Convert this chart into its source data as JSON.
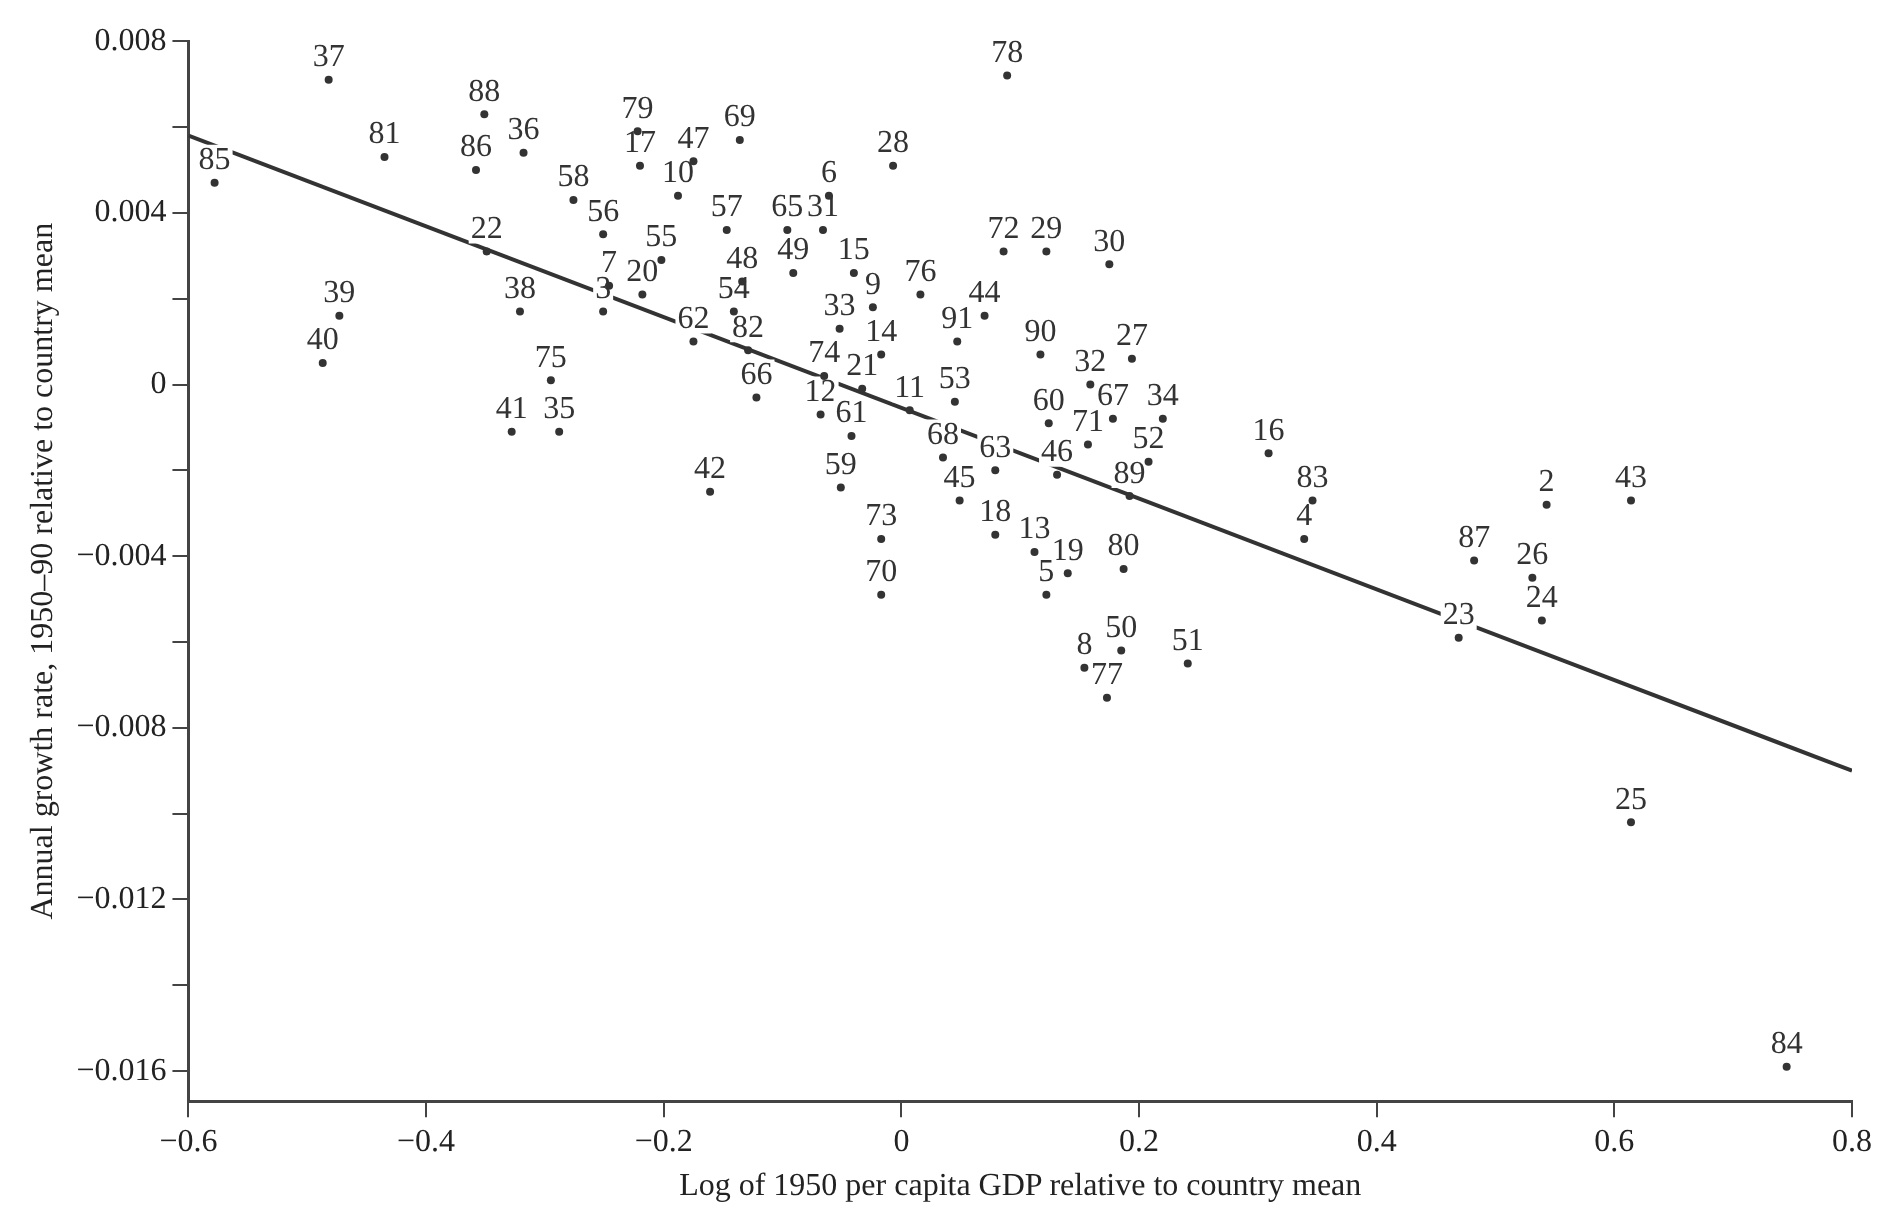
{
  "chart_data": {
    "type": "scatter",
    "xlabel": "Log of 1950 per capita GDP relative to country mean",
    "ylabel": "Annual growth rate, 1950–90 relative to country mean",
    "xlim": [
      -0.6,
      0.8
    ],
    "ylim": [
      -0.0167,
      0.008
    ],
    "xticks": [
      {
        "value": -0.6,
        "label": "−0.6"
      },
      {
        "value": -0.4,
        "label": "−0.4"
      },
      {
        "value": -0.2,
        "label": "−0.2"
      },
      0,
      0.2,
      0.4,
      0.6,
      0.8
    ],
    "yticks": [
      {
        "value": -0.016,
        "label": "−0.016"
      },
      {
        "value": -0.014,
        "label": null
      },
      {
        "value": -0.012,
        "label": "−0.012"
      },
      {
        "value": -0.01,
        "label": null
      },
      {
        "value": -0.008,
        "label": "−0.008"
      },
      {
        "value": -0.006,
        "label": null
      },
      {
        "value": -0.004,
        "label": "−0.004"
      },
      {
        "value": -0.002,
        "label": null
      },
      0,
      {
        "value": 0.002,
        "label": null
      },
      0.004,
      {
        "value": 0.006,
        "label": null
      },
      0.008
    ],
    "grid": false,
    "legend": false,
    "series": [
      {
        "type": "scatter",
        "color": "#333333",
        "marker": "circle",
        "x": [
          -0.482,
          -0.351,
          -0.435,
          -0.358,
          -0.318,
          -0.578,
          -0.222,
          -0.22,
          -0.175,
          -0.136,
          -0.276,
          -0.188,
          -0.349,
          -0.251,
          -0.202,
          -0.147,
          -0.096,
          -0.066,
          -0.061,
          -0.007,
          0.089,
          -0.473,
          -0.487,
          -0.321,
          -0.246,
          -0.218,
          -0.251,
          -0.134,
          -0.141,
          -0.091,
          -0.04,
          -0.175,
          -0.129,
          -0.052,
          -0.024,
          0.016,
          0.086,
          0.122,
          0.175,
          0.07,
          0.047,
          -0.017,
          0.117,
          0.194,
          0.159,
          -0.295,
          -0.065,
          -0.033,
          -0.122,
          0.007,
          0.045,
          0.124,
          0.178,
          0.22,
          0.157,
          -0.068,
          -0.042,
          -0.328,
          -0.288,
          0.309,
          0.208,
          0.035,
          0.079,
          0.131,
          0.192,
          0.049,
          -0.051,
          -0.161,
          0.346,
          0.339,
          0.543,
          0.614,
          0.079,
          -0.017,
          0.112,
          0.14,
          0.187,
          0.122,
          -0.017,
          0.482,
          0.531,
          0.539,
          0.469,
          0.185,
          0.154,
          0.241,
          0.173,
          0.614,
          0.745
        ],
        "values": [
          0.0071,
          0.0063,
          0.0053,
          0.005,
          0.0054,
          0.0047,
          0.0059,
          0.0051,
          0.0052,
          0.0057,
          0.0043,
          0.0044,
          0.0031,
          0.0035,
          0.0029,
          0.0036,
          0.0036,
          0.0036,
          0.0044,
          0.0051,
          0.0072,
          0.0016,
          0.0005,
          0.0017,
          0.0023,
          0.0021,
          0.0017,
          0.0024,
          0.0017,
          0.0026,
          0.0026,
          0.001,
          0.0008,
          0.0013,
          0.0018,
          0.0021,
          0.0031,
          0.0031,
          0.0028,
          0.0016,
          0.001,
          0.0007,
          0.0007,
          0.0006,
          0.0,
          0.0001,
          0.0002,
          -0.0001,
          -0.0003,
          -0.0006,
          -0.0004,
          -0.0009,
          -0.0008,
          -0.0008,
          -0.0014,
          -0.0007,
          -0.0012,
          -0.0011,
          -0.0011,
          -0.0016,
          -0.0018,
          -0.0017,
          -0.002,
          -0.0021,
          -0.0026,
          -0.0027,
          -0.0024,
          -0.0025,
          -0.0027,
          -0.0036,
          -0.0028,
          -0.0027,
          -0.0035,
          -0.0036,
          -0.0039,
          -0.0044,
          -0.0043,
          -0.0049,
          -0.0049,
          -0.0041,
          -0.0045,
          -0.0055,
          -0.0059,
          -0.0062,
          -0.0066,
          -0.0065,
          -0.0073,
          -0.0102,
          -0.0159
        ]
      },
      {
        "type": "line",
        "color": "#333333",
        "x": [
          -0.6,
          0.8
        ],
        "values": [
          0.0058,
          -0.009
        ],
        "line_style": "solid",
        "marker": "none"
      }
    ],
    "annotations": [
      {
        "text": "37",
        "x": -0.482,
        "y": 0.0071
      },
      {
        "text": "88",
        "x": -0.351,
        "y": 0.0063
      },
      {
        "text": "81",
        "x": -0.435,
        "y": 0.0053
      },
      {
        "text": "86",
        "x": -0.358,
        "y": 0.005
      },
      {
        "text": "36",
        "x": -0.318,
        "y": 0.0054
      },
      {
        "text": "85",
        "x": -0.578,
        "y": 0.0047
      },
      {
        "text": "79",
        "x": -0.222,
        "y": 0.0059
      },
      {
        "text": "17",
        "x": -0.22,
        "y": 0.0051
      },
      {
        "text": "47",
        "x": -0.175,
        "y": 0.0052
      },
      {
        "text": "69",
        "x": -0.136,
        "y": 0.0057
      },
      {
        "text": "58",
        "x": -0.276,
        "y": 0.0043
      },
      {
        "text": "10",
        "x": -0.188,
        "y": 0.0044
      },
      {
        "text": "22",
        "x": -0.349,
        "y": 0.0031
      },
      {
        "text": "56",
        "x": -0.251,
        "y": 0.0035
      },
      {
        "text": "55",
        "x": -0.202,
        "y": 0.0029
      },
      {
        "text": "57",
        "x": -0.147,
        "y": 0.0036
      },
      {
        "text": "65",
        "x": -0.096,
        "y": 0.0036
      },
      {
        "text": "31",
        "x": -0.066,
        "y": 0.0036
      },
      {
        "text": "6",
        "x": -0.061,
        "y": 0.0044
      },
      {
        "text": "28",
        "x": -0.007,
        "y": 0.0051
      },
      {
        "text": "78",
        "x": 0.089,
        "y": 0.0072
      },
      {
        "text": "39",
        "x": -0.473,
        "y": 0.0016
      },
      {
        "text": "40",
        "x": -0.487,
        "y": 0.0005
      },
      {
        "text": "38",
        "x": -0.321,
        "y": 0.0017
      },
      {
        "text": "7",
        "x": -0.246,
        "y": 0.0023
      },
      {
        "text": "20",
        "x": -0.218,
        "y": 0.0021
      },
      {
        "text": "3",
        "x": -0.251,
        "y": 0.0017
      },
      {
        "text": "48",
        "x": -0.134,
        "y": 0.0024
      },
      {
        "text": "54",
        "x": -0.141,
        "y": 0.0017
      },
      {
        "text": "49",
        "x": -0.091,
        "y": 0.0026
      },
      {
        "text": "15",
        "x": -0.04,
        "y": 0.0026
      },
      {
        "text": "62",
        "x": -0.175,
        "y": 0.001
      },
      {
        "text": "82",
        "x": -0.129,
        "y": 0.0008
      },
      {
        "text": "33",
        "x": -0.052,
        "y": 0.0013
      },
      {
        "text": "9",
        "x": -0.024,
        "y": 0.0018
      },
      {
        "text": "76",
        "x": 0.016,
        "y": 0.0021
      },
      {
        "text": "72",
        "x": 0.086,
        "y": 0.0031
      },
      {
        "text": "29",
        "x": 0.122,
        "y": 0.0031
      },
      {
        "text": "30",
        "x": 0.175,
        "y": 0.0028
      },
      {
        "text": "44",
        "x": 0.07,
        "y": 0.0016
      },
      {
        "text": "91",
        "x": 0.047,
        "y": 0.001
      },
      {
        "text": "14",
        "x": -0.017,
        "y": 0.0007
      },
      {
        "text": "90",
        "x": 0.117,
        "y": 0.0007
      },
      {
        "text": "27",
        "x": 0.194,
        "y": 0.0006
      },
      {
        "text": "32",
        "x": 0.159,
        "y": 0.0
      },
      {
        "text": "75",
        "x": -0.295,
        "y": 0.0001
      },
      {
        "text": "74",
        "x": -0.065,
        "y": 0.0002
      },
      {
        "text": "21",
        "x": -0.033,
        "y": -0.0001
      },
      {
        "text": "66",
        "x": -0.122,
        "y": -0.0003
      },
      {
        "text": "11",
        "x": 0.007,
        "y": -0.0006
      },
      {
        "text": "53",
        "x": 0.045,
        "y": -0.0004
      },
      {
        "text": "60",
        "x": 0.124,
        "y": -0.0009
      },
      {
        "text": "67",
        "x": 0.178,
        "y": -0.0008
      },
      {
        "text": "34",
        "x": 0.22,
        "y": -0.0008
      },
      {
        "text": "71",
        "x": 0.157,
        "y": -0.0014
      },
      {
        "text": "12",
        "x": -0.068,
        "y": -0.0007
      },
      {
        "text": "61",
        "x": -0.042,
        "y": -0.0012
      },
      {
        "text": "41",
        "x": -0.328,
        "y": -0.0011
      },
      {
        "text": "35",
        "x": -0.288,
        "y": -0.0011
      },
      {
        "text": "16",
        "x": 0.309,
        "y": -0.0016
      },
      {
        "text": "52",
        "x": 0.208,
        "y": -0.0018
      },
      {
        "text": "68",
        "x": 0.035,
        "y": -0.0017
      },
      {
        "text": "63",
        "x": 0.079,
        "y": -0.002
      },
      {
        "text": "46",
        "x": 0.131,
        "y": -0.0021
      },
      {
        "text": "89",
        "x": 0.192,
        "y": -0.0026
      },
      {
        "text": "45",
        "x": 0.049,
        "y": -0.0027
      },
      {
        "text": "59",
        "x": -0.051,
        "y": -0.0024
      },
      {
        "text": "42",
        "x": -0.161,
        "y": -0.0025
      },
      {
        "text": "83",
        "x": 0.346,
        "y": -0.0027
      },
      {
        "text": "4",
        "x": 0.339,
        "y": -0.0036
      },
      {
        "text": "2",
        "x": 0.543,
        "y": -0.0028
      },
      {
        "text": "43",
        "x": 0.614,
        "y": -0.0027
      },
      {
        "text": "18",
        "x": 0.079,
        "y": -0.0035
      },
      {
        "text": "73",
        "x": -0.017,
        "y": -0.0036
      },
      {
        "text": "13",
        "x": 0.112,
        "y": -0.0039
      },
      {
        "text": "19",
        "x": 0.14,
        "y": -0.0044
      },
      {
        "text": "80",
        "x": 0.187,
        "y": -0.0043
      },
      {
        "text": "5",
        "x": 0.122,
        "y": -0.0049
      },
      {
        "text": "70",
        "x": -0.017,
        "y": -0.0049
      },
      {
        "text": "87",
        "x": 0.482,
        "y": -0.0041
      },
      {
        "text": "26",
        "x": 0.531,
        "y": -0.0045
      },
      {
        "text": "24",
        "x": 0.539,
        "y": -0.0055
      },
      {
        "text": "23",
        "x": 0.469,
        "y": -0.0059
      },
      {
        "text": "50",
        "x": 0.185,
        "y": -0.0062
      },
      {
        "text": "8",
        "x": 0.154,
        "y": -0.0066
      },
      {
        "text": "51",
        "x": 0.241,
        "y": -0.0065
      },
      {
        "text": "77",
        "x": 0.173,
        "y": -0.0073
      },
      {
        "text": "25",
        "x": 0.614,
        "y": -0.0102
      },
      {
        "text": "84",
        "x": 0.745,
        "y": -0.0159
      }
    ]
  }
}
